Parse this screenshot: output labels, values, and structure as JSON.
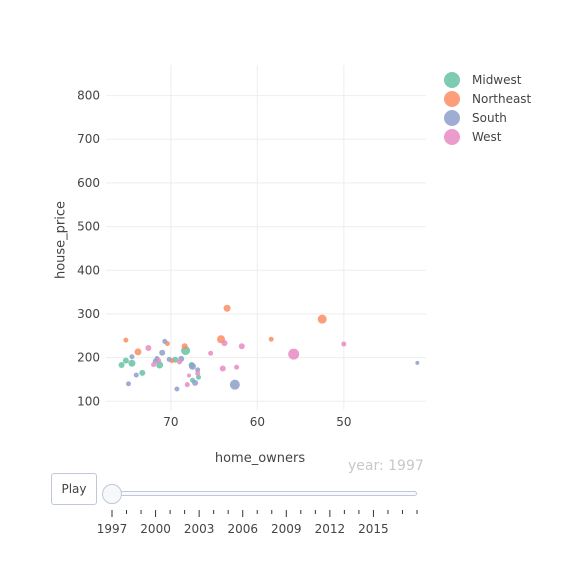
{
  "chart_data": {
    "type": "scatter",
    "xlabel": "home_owners",
    "ylabel": "house_price",
    "x_reversed": true,
    "xlim": [
      40.5,
      77.5
    ],
    "ylim": [
      80,
      870
    ],
    "x_ticks": [
      70,
      60,
      50
    ],
    "y_ticks": [
      100,
      200,
      300,
      400,
      500,
      600,
      700,
      800
    ],
    "grid": true,
    "legend_position": "top-right",
    "series": [
      {
        "name": "Midwest",
        "color": "#66c2a5",
        "points": [
          [
            75.7,
            183,
            6
          ],
          [
            75.2,
            193,
            6
          ],
          [
            74.5,
            187,
            7
          ],
          [
            73.3,
            165,
            6
          ],
          [
            71.3,
            183,
            7
          ],
          [
            69.5,
            195,
            6
          ],
          [
            68.3,
            216,
            9
          ],
          [
            67.6,
            183,
            6
          ],
          [
            66.8,
            155,
            5
          ],
          [
            67.5,
            148,
            5
          ]
        ]
      },
      {
        "name": "Northeast",
        "color": "#fc8d62",
        "points": [
          [
            75.2,
            240,
            5
          ],
          [
            73.8,
            213,
            7
          ],
          [
            70.4,
            232,
            5
          ],
          [
            68.4,
            226,
            6
          ],
          [
            64.2,
            242,
            8
          ],
          [
            63.5,
            313,
            7
          ],
          [
            58.4,
            242,
            5
          ],
          [
            52.5,
            288,
            9
          ],
          [
            69.9,
            193,
            5
          ]
        ]
      },
      {
        "name": "South",
        "color": "#8da0cb",
        "points": [
          [
            74.0,
            160,
            5
          ],
          [
            74.5,
            202,
            5
          ],
          [
            74.9,
            140,
            5
          ],
          [
            71.8,
            192,
            5
          ],
          [
            71.6,
            198,
            5
          ],
          [
            71.0,
            211,
            6
          ],
          [
            70.2,
            196,
            5
          ],
          [
            70.7,
            237,
            5
          ],
          [
            69.3,
            128,
            5
          ],
          [
            68.8,
            197,
            6
          ],
          [
            67.5,
            180,
            7
          ],
          [
            67.2,
            142,
            6
          ],
          [
            66.9,
            172,
            5
          ],
          [
            62.6,
            138,
            10
          ],
          [
            41.5,
            188,
            4
          ]
        ]
      },
      {
        "name": "West",
        "color": "#e78ac3",
        "points": [
          [
            72.6,
            222,
            6
          ],
          [
            72.0,
            184,
            5
          ],
          [
            71.4,
            193,
            5
          ],
          [
            69.0,
            190,
            5
          ],
          [
            68.1,
            138,
            5
          ],
          [
            66.9,
            164,
            5
          ],
          [
            64.0,
            175,
            6
          ],
          [
            62.4,
            178,
            5
          ],
          [
            61.8,
            226,
            6
          ],
          [
            65.4,
            210,
            5
          ],
          [
            63.8,
            233,
            6
          ],
          [
            55.8,
            208,
            11
          ],
          [
            50.0,
            231,
            5
          ],
          [
            67.9,
            159,
            4
          ]
        ]
      }
    ],
    "animation": {
      "current_label": "year: 1997",
      "play_label": "Play",
      "slider_start": 1997,
      "slider_end": 2018,
      "tick_labels": [
        "1997",
        "2000",
        "2003",
        "2006",
        "2009",
        "2012",
        "2015"
      ]
    }
  }
}
